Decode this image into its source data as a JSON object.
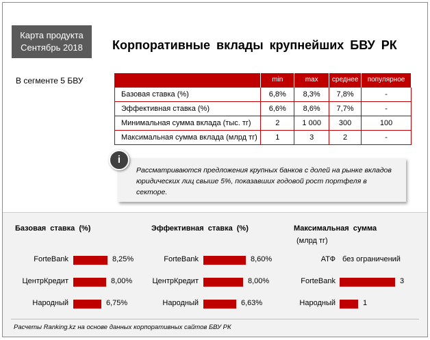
{
  "badge": {
    "line1": "Карта продукта",
    "line2": "Сентябрь 2018"
  },
  "title": "Корпоративные вклады крупнейших БВУ РК",
  "segment": "В сегменте 5 БВУ",
  "table": {
    "headers": [
      "min",
      "max",
      "среднее",
      "популярное"
    ],
    "rows": [
      {
        "label": "Базовая ставка (%)",
        "cells": [
          "6,8%",
          "8,3%",
          "7,8%",
          "-"
        ]
      },
      {
        "label": "Эффективная ставка (%)",
        "cells": [
          "6,6%",
          "8,6%",
          "7,7%",
          "-"
        ]
      },
      {
        "label": "Минимальная сумма вклада (тыс. тг)",
        "cells": [
          "2",
          "1 000",
          "300",
          "100"
        ]
      },
      {
        "label": "Максимальная сумма вклада (млрд тг)",
        "cells": [
          "1",
          "3",
          "2",
          "-"
        ]
      }
    ]
  },
  "info": {
    "icon_label": "i",
    "text": "Рассматриваются предложения крупных банков с долей на рынке вкладов юридических лиц свыше 5%, показавших годовой рост портфеля в секторе."
  },
  "chart_data": [
    {
      "type": "bar",
      "title": "Базовая ставка (%)",
      "categories": [
        "ForteBank",
        "ЦентрКредит",
        "Народный"
      ],
      "values": [
        8.25,
        8.0,
        6.75
      ],
      "labels": [
        "8,25%",
        "8,00%",
        "6,75%"
      ]
    },
    {
      "type": "bar",
      "title": "Эффективная ставка (%)",
      "categories": [
        "ForteBank",
        "ЦентрКредит",
        "Народный"
      ],
      "values": [
        8.6,
        8.0,
        6.63
      ],
      "labels": [
        "8,60%",
        "8,00%",
        "6,63%"
      ]
    },
    {
      "type": "bar",
      "title": "Максимальная сумма",
      "subtitle": "(млрд тг)",
      "categories": [
        "АТФ",
        "ForteBank",
        "Народный"
      ],
      "values": [
        null,
        3,
        1
      ],
      "labels": [
        "без ограничений",
        "3",
        "1"
      ]
    }
  ],
  "footnote": "Расчеты Ranking.kz на основе данных корпоративных сайтов БВУ РК",
  "colors": {
    "accent": "#c00000",
    "badge": "#5a5a5a",
    "panel": "#f2f2f2"
  }
}
